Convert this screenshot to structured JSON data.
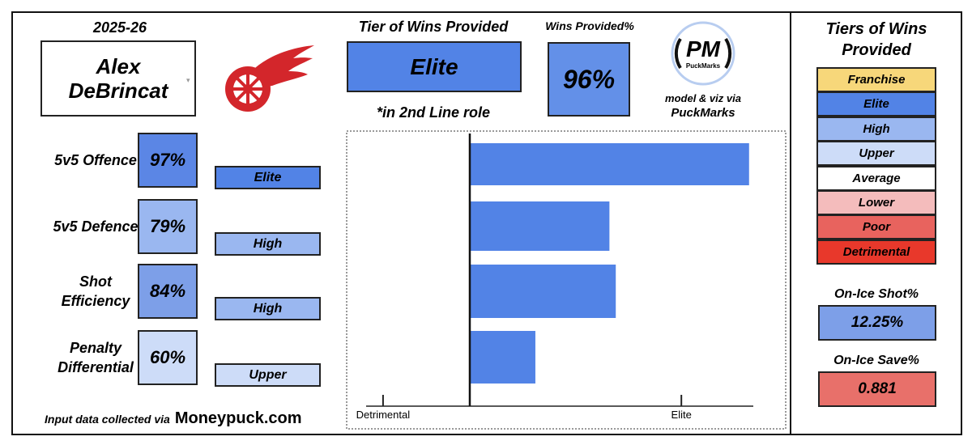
{
  "season": "2025-26",
  "player": "Alex DeBrincat",
  "tier_title": "Tier of Wins Provided",
  "tier": "Elite",
  "role_note": "*in 2nd Line role",
  "wins_title": "Wins Provided%",
  "wins_value": "96%",
  "logo": {
    "initials": "PM",
    "name": "PuckMarks"
  },
  "credit": {
    "line1": "model & viz via",
    "line2": "PuckMarks"
  },
  "metrics": [
    {
      "label": "5v5 Offence",
      "pct": "97%",
      "tier": "Elite"
    },
    {
      "label": "5v5 Defence",
      "pct": "79%",
      "tier": "High"
    },
    {
      "label": "Shot Efficiency",
      "pct": "84%",
      "tier": "High"
    },
    {
      "label": "Penalty Differential",
      "pct": "60%",
      "tier": "Upper"
    }
  ],
  "footer": {
    "text": "Input data collected via",
    "source": "Moneypuck.com"
  },
  "chart_data": {
    "type": "bar",
    "orientation": "horizontal",
    "values": [
      1.32,
      0.66,
      0.69,
      0.31
    ],
    "color": "#5283e6",
    "xlim": [
      -0.49,
      1.34
    ],
    "xticks": [
      {
        "value": -0.41,
        "label": "Detrimental"
      },
      {
        "value": 1,
        "label": "Elite"
      }
    ]
  },
  "legend": {
    "title": "Tiers of Wins Provided",
    "tiers": [
      {
        "name": "Franchise",
        "color": "#f7d77a"
      },
      {
        "name": "Elite",
        "color": "#5283e6"
      },
      {
        "name": "High",
        "color": "#9ab7f0"
      },
      {
        "name": "Upper",
        "color": "#cddcf8"
      },
      {
        "name": "Average",
        "color": "#ffffff"
      },
      {
        "name": "Lower",
        "color": "#f4bcbc"
      },
      {
        "name": "Poor",
        "color": "#e8635e"
      },
      {
        "name": "Detrimental",
        "color": "#e8382b"
      }
    ]
  },
  "on_ice": [
    {
      "title": "On-Ice Shot%",
      "value": "12.25%",
      "color": "#7d9fe8"
    },
    {
      "title": "On-Ice Save%",
      "value": "0.881",
      "color": "#e8706a"
    }
  ]
}
